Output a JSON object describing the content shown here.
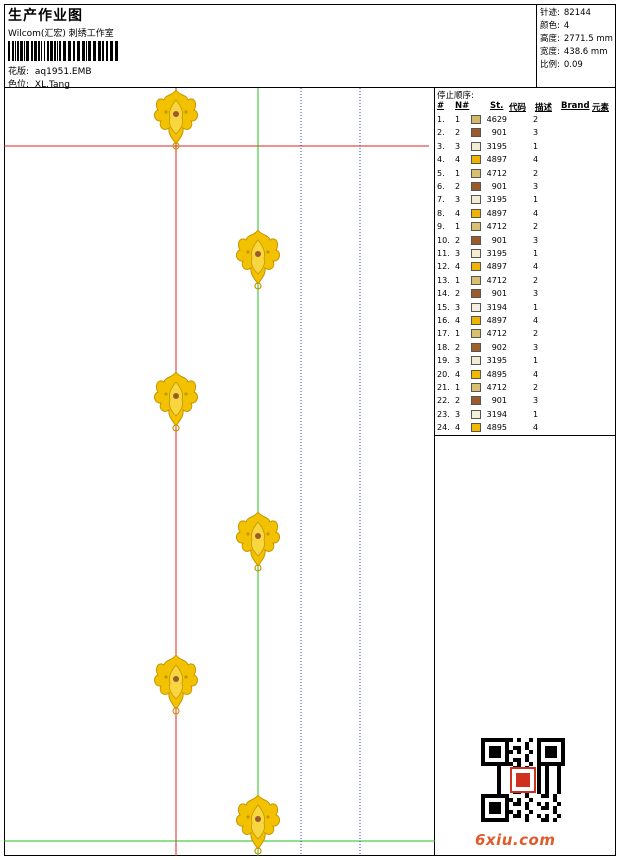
{
  "header": {
    "title": "生产作业图",
    "company": "Wilcom(汇宏) 刺绣工作室",
    "design_label": "花版:",
    "design_value": "aq1951.EMB",
    "colorway_label": "色位:",
    "colorway_value": "XL.Tang"
  },
  "info": {
    "stitches_label": "针迹:",
    "stitches_value": "82144",
    "colors_label": "颜色:",
    "colors_value": "4",
    "height_label": "高度:",
    "height_value": "2771.5 mm",
    "width_label": "宽度:",
    "width_value": "438.6 mm",
    "scale_label": "比例:",
    "scale_value": "0.09"
  },
  "sequence": {
    "title": "停止顺序:",
    "headers": {
      "num": "#",
      "needle": "N#",
      "st": "St.",
      "code": "代码",
      "desc": "描述",
      "brand": "Brand",
      "element": "元素"
    },
    "rows": [
      {
        "idx": "1.",
        "n": "1",
        "code": "4629",
        "color": "#d6b66a",
        "el": "2"
      },
      {
        "idx": "2.",
        "n": "2",
        "code": "901",
        "color": "#9a5a2a",
        "el": "3"
      },
      {
        "idx": "3.",
        "n": "3",
        "code": "3195",
        "color": "#f2ecd2",
        "el": "1"
      },
      {
        "idx": "4.",
        "n": "4",
        "code": "4897",
        "color": "#f0b400",
        "el": "4"
      },
      {
        "idx": "5.",
        "n": "1",
        "code": "4712",
        "color": "#d8c070",
        "el": "2"
      },
      {
        "idx": "6.",
        "n": "2",
        "code": "901",
        "color": "#9a5a2a",
        "el": "3"
      },
      {
        "idx": "7.",
        "n": "3",
        "code": "3195",
        "color": "#f2ecd2",
        "el": "1"
      },
      {
        "idx": "8.",
        "n": "4",
        "code": "4897",
        "color": "#f0b400",
        "el": "4"
      },
      {
        "idx": "9.",
        "n": "1",
        "code": "4712",
        "color": "#d8c070",
        "el": "2"
      },
      {
        "idx": "10.",
        "n": "2",
        "code": "901",
        "color": "#9a5a2a",
        "el": "3"
      },
      {
        "idx": "11.",
        "n": "3",
        "code": "3195",
        "color": "#f2ecd2",
        "el": "1"
      },
      {
        "idx": "12.",
        "n": "4",
        "code": "4897",
        "color": "#f0b400",
        "el": "4"
      },
      {
        "idx": "13.",
        "n": "1",
        "code": "4712",
        "color": "#d8c070",
        "el": "2"
      },
      {
        "idx": "14.",
        "n": "2",
        "code": "901",
        "color": "#9a5a2a",
        "el": "3"
      },
      {
        "idx": "15.",
        "n": "3",
        "code": "3194",
        "color": "#f4eedc",
        "el": "1"
      },
      {
        "idx": "16.",
        "n": "4",
        "code": "4897",
        "color": "#f0b400",
        "el": "4"
      },
      {
        "idx": "17.",
        "n": "1",
        "code": "4712",
        "color": "#d8c070",
        "el": "2"
      },
      {
        "idx": "18.",
        "n": "2",
        "code": "902",
        "color": "#a0602c",
        "el": "3"
      },
      {
        "idx": "19.",
        "n": "3",
        "code": "3195",
        "color": "#f2ecd2",
        "el": "1"
      },
      {
        "idx": "20.",
        "n": "4",
        "code": "4895",
        "color": "#f2b800",
        "el": "4"
      },
      {
        "idx": "21.",
        "n": "1",
        "code": "4712",
        "color": "#d8c070",
        "el": "2"
      },
      {
        "idx": "22.",
        "n": "2",
        "code": "901",
        "color": "#9a5a2a",
        "el": "3"
      },
      {
        "idx": "23.",
        "n": "3",
        "code": "3194",
        "color": "#f4eedc",
        "el": "1"
      },
      {
        "idx": "24.",
        "n": "4",
        "code": "4895",
        "color": "#f2b800",
        "el": "4"
      }
    ]
  },
  "footer": {
    "brand": "6xiu.com"
  },
  "colors": {
    "motif_gold": "#f2c200",
    "motif_dark": "#c79400",
    "red_line": "#e02020",
    "green_line": "#20c020",
    "blue_line": "#3040c0",
    "brand": "#e05a2a"
  }
}
